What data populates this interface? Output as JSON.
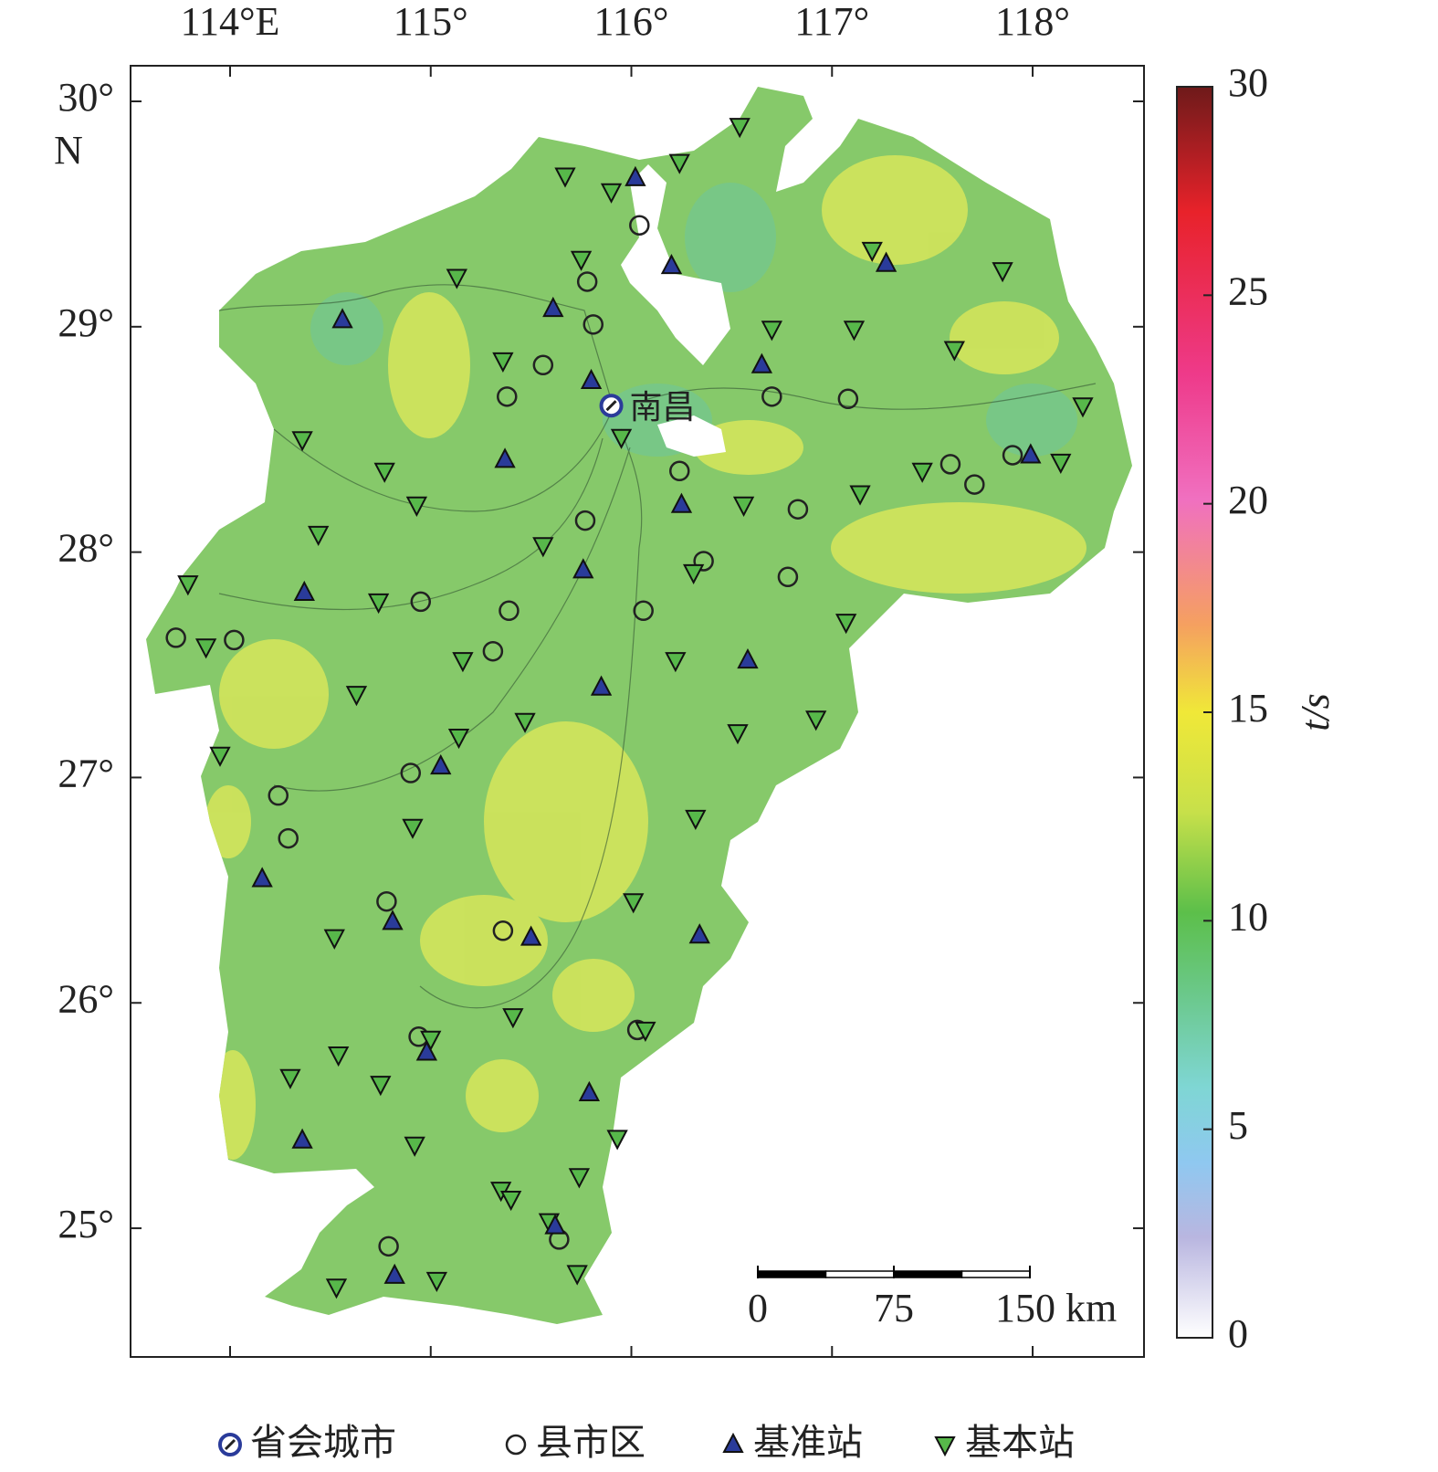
{
  "map": {
    "xlim": [
      113.504,
      118.555
    ],
    "ylim": [
      24.429,
      30.158
    ],
    "xticks": [
      {
        "value": 114,
        "label": "114°E"
      },
      {
        "value": 115,
        "label": "115°"
      },
      {
        "value": 116,
        "label": "116°"
      },
      {
        "value": 117,
        "label": "117°"
      },
      {
        "value": 118,
        "label": "118°"
      }
    ],
    "yticks": [
      {
        "value": 30,
        "label": "30°"
      },
      {
        "value": 29,
        "label": "29°"
      },
      {
        "value": 28,
        "label": "28°"
      },
      {
        "value": 27,
        "label": "27°"
      },
      {
        "value": 26,
        "label": "26°"
      },
      {
        "value": 25,
        "label": "25°"
      }
    ],
    "lat_unit": "N",
    "capital_label": "南昌",
    "colorbar": {
      "label": "t/s",
      "lim": [
        0,
        30
      ],
      "ticks": [
        0,
        5,
        10,
        15,
        20,
        25,
        30
      ]
    },
    "scale_bar": {
      "lim": [
        0,
        150
      ],
      "ticks": [
        0,
        75,
        {
          "value": 150,
          "label": "150 km"
        }
      ]
    },
    "legend": [
      "省会城市",
      "县市区",
      "基准站",
      "基本站"
    ],
    "stations": {
      "capital": [
        [
          115.9,
          28.65
        ]
      ],
      "county": [
        [
          115.81,
          29.01
        ],
        [
          115.38,
          28.69
        ],
        [
          115.56,
          28.83
        ],
        [
          116.7,
          28.69
        ],
        [
          117.08,
          28.68
        ],
        [
          116.24,
          28.36
        ],
        [
          115.77,
          28.14
        ],
        [
          116.36,
          27.96
        ],
        [
          116.78,
          27.89
        ],
        [
          116.06,
          27.74
        ],
        [
          115.39,
          27.74
        ],
        [
          115.31,
          27.56
        ],
        [
          114.95,
          27.78
        ],
        [
          114.02,
          27.61
        ],
        [
          113.73,
          27.62
        ],
        [
          114.24,
          26.92
        ],
        [
          114.29,
          26.73
        ],
        [
          114.9,
          27.02
        ],
        [
          114.78,
          26.45
        ],
        [
          115.36,
          26.32
        ],
        [
          116.03,
          25.88
        ],
        [
          114.94,
          25.85
        ],
        [
          114.79,
          24.92
        ],
        [
          115.64,
          24.95
        ],
        [
          116.83,
          28.19
        ],
        [
          117.71,
          28.3
        ],
        [
          117.59,
          28.39
        ],
        [
          116.04,
          29.45
        ],
        [
          115.78,
          29.2
        ],
        [
          117.9,
          28.43
        ]
      ],
      "reference": [
        [
          114.56,
          29.03
        ],
        [
          115.61,
          29.08
        ],
        [
          115.37,
          28.41
        ],
        [
          116.25,
          28.21
        ],
        [
          115.76,
          27.92
        ],
        [
          114.37,
          27.82
        ],
        [
          116.58,
          27.52
        ],
        [
          115.85,
          27.4
        ],
        [
          115.05,
          27.05
        ],
        [
          114.16,
          26.55
        ],
        [
          114.81,
          26.36
        ],
        [
          115.5,
          26.29
        ],
        [
          116.34,
          26.3
        ],
        [
          114.98,
          25.78
        ],
        [
          115.79,
          25.6
        ],
        [
          114.36,
          25.39
        ],
        [
          114.82,
          24.79
        ],
        [
          115.62,
          25.01
        ],
        [
          117.99,
          28.43
        ],
        [
          117.27,
          29.28
        ],
        [
          116.65,
          28.83
        ],
        [
          116.2,
          29.27
        ],
        [
          116.02,
          29.66
        ],
        [
          115.8,
          28.76
        ]
      ],
      "basic": [
        [
          115.67,
          29.67
        ],
        [
          115.9,
          29.6
        ],
        [
          116.24,
          29.73
        ],
        [
          115.13,
          29.22
        ],
        [
          115.75,
          29.3
        ],
        [
          115.36,
          28.85
        ],
        [
          116.7,
          28.99
        ],
        [
          117.11,
          28.99
        ],
        [
          117.61,
          28.9
        ],
        [
          117.85,
          29.25
        ],
        [
          117.2,
          29.34
        ],
        [
          115.95,
          28.51
        ],
        [
          114.36,
          28.5
        ],
        [
          114.77,
          28.36
        ],
        [
          114.93,
          28.21
        ],
        [
          114.44,
          28.08
        ],
        [
          115.56,
          28.03
        ],
        [
          116.56,
          28.21
        ],
        [
          117.14,
          28.26
        ],
        [
          117.45,
          28.36
        ],
        [
          118.14,
          28.4
        ],
        [
          118.25,
          28.65
        ],
        [
          113.79,
          27.86
        ],
        [
          113.88,
          27.58
        ],
        [
          114.74,
          27.78
        ],
        [
          115.16,
          27.52
        ],
        [
          114.63,
          27.37
        ],
        [
          116.22,
          27.52
        ],
        [
          115.47,
          27.25
        ],
        [
          115.14,
          27.18
        ],
        [
          113.95,
          27.1
        ],
        [
          114.91,
          26.78
        ],
        [
          116.53,
          27.2
        ],
        [
          116.92,
          27.26
        ],
        [
          116.32,
          26.82
        ],
        [
          117.07,
          27.69
        ],
        [
          116.31,
          27.91
        ],
        [
          114.52,
          26.29
        ],
        [
          116.01,
          26.45
        ],
        [
          115.41,
          25.94
        ],
        [
          116.07,
          25.88
        ],
        [
          115.0,
          25.84
        ],
        [
          114.54,
          25.77
        ],
        [
          114.3,
          25.67
        ],
        [
          114.75,
          25.64
        ],
        [
          114.92,
          25.37
        ],
        [
          115.93,
          25.4
        ],
        [
          115.74,
          25.23
        ],
        [
          115.35,
          25.17
        ],
        [
          115.4,
          25.13
        ],
        [
          115.59,
          25.03
        ],
        [
          115.73,
          24.8
        ],
        [
          114.53,
          24.74
        ],
        [
          115.03,
          24.77
        ],
        [
          116.54,
          29.89
        ]
      ]
    }
  }
}
